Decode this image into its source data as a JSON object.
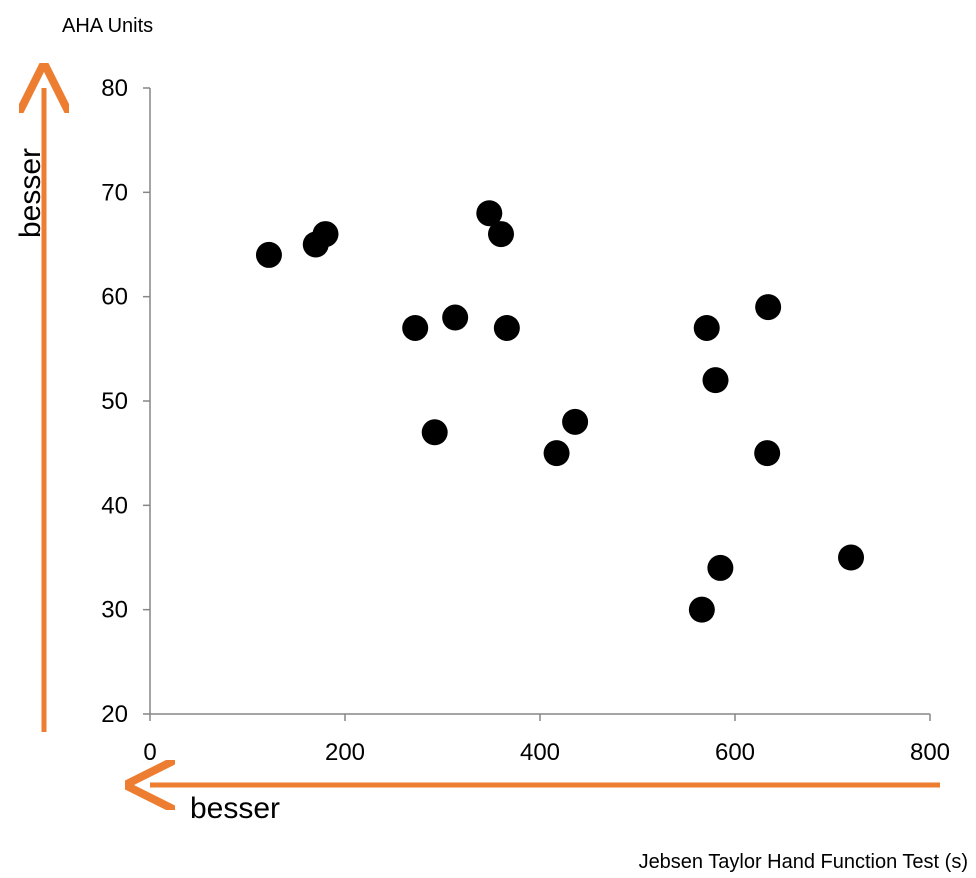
{
  "chart_data": {
    "type": "scatter",
    "ylabel": "AHA Units",
    "xlabel": "Jebsen Taylor Hand Function Test (s)",
    "xlim": [
      0,
      800
    ],
    "ylim": [
      20,
      80
    ],
    "x_ticks": [
      0,
      200,
      400,
      600,
      800
    ],
    "y_ticks": [
      20,
      30,
      40,
      50,
      60,
      70,
      80
    ],
    "grid": false,
    "marker_color": "#000000",
    "points": [
      {
        "x": 122,
        "y": 64
      },
      {
        "x": 170,
        "y": 65
      },
      {
        "x": 180,
        "y": 66
      },
      {
        "x": 272,
        "y": 57
      },
      {
        "x": 292,
        "y": 47
      },
      {
        "x": 313,
        "y": 58
      },
      {
        "x": 348,
        "y": 68
      },
      {
        "x": 360,
        "y": 66
      },
      {
        "x": 366,
        "y": 57
      },
      {
        "x": 417,
        "y": 45
      },
      {
        "x": 436,
        "y": 48
      },
      {
        "x": 566,
        "y": 30
      },
      {
        "x": 571,
        "y": 57
      },
      {
        "x": 580,
        "y": 52
      },
      {
        "x": 585,
        "y": 34
      },
      {
        "x": 633,
        "y": 45
      },
      {
        "x": 634,
        "y": 59
      },
      {
        "x": 719,
        "y": 35
      }
    ],
    "annotations": {
      "y_arrow_label": "besser",
      "x_arrow_label": "besser",
      "arrow_color": "#ED7D31"
    }
  }
}
